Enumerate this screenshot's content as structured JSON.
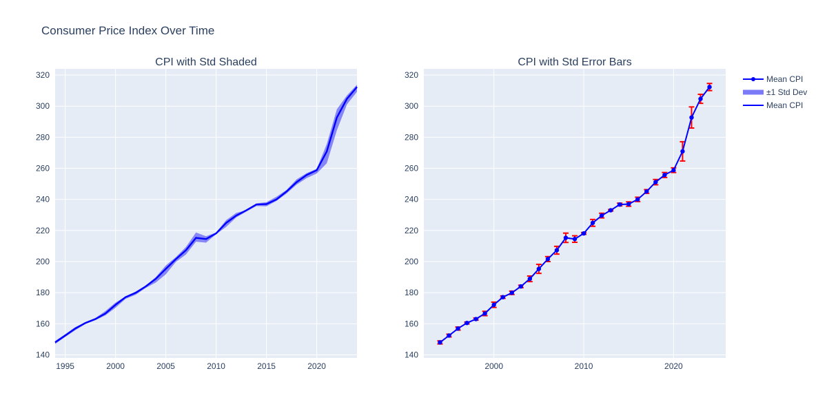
{
  "figure": {
    "title": "Consumer Price Index Over Time"
  },
  "chart_data": [
    {
      "type": "area",
      "title": "CPI with Std Shaded",
      "xlabel": "",
      "ylabel": "",
      "xlim": [
        1994,
        2024
      ],
      "ylim": [
        138,
        324
      ],
      "xticks": [
        1995,
        2000,
        2005,
        2010,
        2015,
        2020
      ],
      "yticks": [
        140,
        160,
        180,
        200,
        220,
        240,
        260,
        280,
        300,
        320
      ],
      "grid": true,
      "x": [
        1994,
        1995,
        1996,
        1997,
        1998,
        1999,
        2000,
        2001,
        2002,
        2003,
        2004,
        2005,
        2006,
        2007,
        2008,
        2009,
        2010,
        2011,
        2012,
        2013,
        2014,
        2015,
        2016,
        2017,
        2018,
        2019,
        2020,
        2021,
        2022,
        2023,
        2024
      ],
      "series": [
        {
          "name": "±1 Std Dev",
          "kind": "band",
          "color": "#7b7bf7",
          "lower": [
            147.0,
            151.5,
            155.8,
            159.8,
            162.3,
            165.4,
            170.3,
            176.0,
            178.6,
            183.0,
            186.5,
            191.8,
            199.8,
            204.5,
            212.8,
            212.2,
            217.6,
            222.3,
            228.4,
            232.1,
            235.7,
            235.5,
            239.0,
            243.8,
            249.5,
            253.7,
            256.7,
            263.3,
            284.5,
            301.1,
            309.2
          ],
          "upper": [
            148.9,
            153.3,
            157.8,
            160.9,
            163.7,
            168.2,
            173.6,
            177.6,
            180.7,
            184.5,
            190.0,
            197.5,
            202.9,
            209.4,
            218.7,
            216.3,
            218.7,
            226.7,
            231.3,
            233.0,
            237.4,
            238.2,
            241.7,
            246.1,
            252.9,
            256.9,
            259.7,
            275.7,
            298.0,
            306.9,
            313.8
          ]
        },
        {
          "name": "Mean CPI",
          "kind": "line",
          "color": "#0000ff",
          "values": [
            148.0,
            152.4,
            156.9,
            160.5,
            163.0,
            166.6,
            172.2,
            177.1,
            179.9,
            184.0,
            188.9,
            195.3,
            201.6,
            207.3,
            215.3,
            214.5,
            218.1,
            224.9,
            229.6,
            233.0,
            236.7,
            237.0,
            240.0,
            245.1,
            251.1,
            255.7,
            258.8,
            270.9,
            292.7,
            304.7,
            312.3
          ]
        }
      ]
    },
    {
      "type": "line",
      "title": "CPI with Std Error Bars",
      "xlabel": "",
      "ylabel": "",
      "xlim": [
        1992.2,
        2025.8
      ],
      "ylim": [
        138,
        324
      ],
      "xticks": [
        2000,
        2010,
        2020
      ],
      "yticks": [
        140,
        160,
        180,
        200,
        220,
        240,
        260,
        280,
        300,
        320
      ],
      "grid": true,
      "x": [
        1994,
        1995,
        1996,
        1997,
        1998,
        1999,
        2000,
        2001,
        2002,
        2003,
        2004,
        2005,
        2006,
        2007,
        2008,
        2009,
        2010,
        2011,
        2012,
        2013,
        2014,
        2015,
        2016,
        2017,
        2018,
        2019,
        2020,
        2021,
        2022,
        2023,
        2024
      ],
      "series": [
        {
          "name": "Mean CPI",
          "kind": "line+markers",
          "color": "#0000ff",
          "error_color": "#ff0000",
          "values": [
            148.0,
            152.4,
            156.9,
            160.5,
            163.0,
            166.6,
            172.2,
            177.1,
            179.9,
            184.0,
            188.9,
            195.3,
            201.6,
            207.3,
            215.3,
            214.5,
            218.1,
            224.9,
            229.6,
            233.0,
            236.7,
            237.0,
            240.0,
            245.1,
            251.1,
            255.7,
            258.8,
            270.9,
            292.7,
            304.7,
            312.3
          ],
          "error": [
            1.0,
            0.9,
            1.0,
            0.6,
            0.7,
            1.4,
            1.7,
            0.8,
            1.1,
            0.8,
            1.8,
            2.9,
            1.6,
            2.5,
            3.0,
            2.1,
            0.6,
            2.2,
            1.5,
            0.5,
            0.9,
            1.4,
            1.4,
            1.2,
            1.7,
            1.6,
            1.5,
            6.2,
            6.8,
            2.9,
            2.3
          ]
        }
      ]
    }
  ],
  "legend": {
    "placement": "top-right",
    "items": [
      {
        "label": "Mean CPI",
        "kind": "line-marker",
        "color": "#0000ff"
      },
      {
        "label": "±1 Std Dev",
        "kind": "band",
        "color": "#7b7bf7"
      },
      {
        "label": "Mean CPI",
        "kind": "line",
        "color": "#0000ff"
      }
    ]
  }
}
